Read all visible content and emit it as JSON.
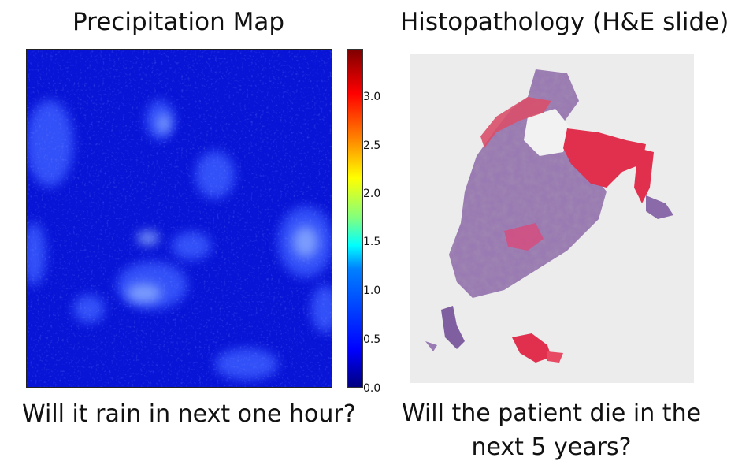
{
  "left_panel": {
    "title": "Precipitation Map",
    "question": "Will it rain in next one hour?",
    "colorbar_ticks": [
      "3.0",
      "2.5",
      "2.0",
      "1.5",
      "1.0",
      "0.5",
      "0.0"
    ],
    "colormap": "jet"
  },
  "right_panel": {
    "title": "Histopathology (H&E slide)",
    "question_line1": "Will the patient die in the",
    "question_line2": "next 5 years?"
  }
}
